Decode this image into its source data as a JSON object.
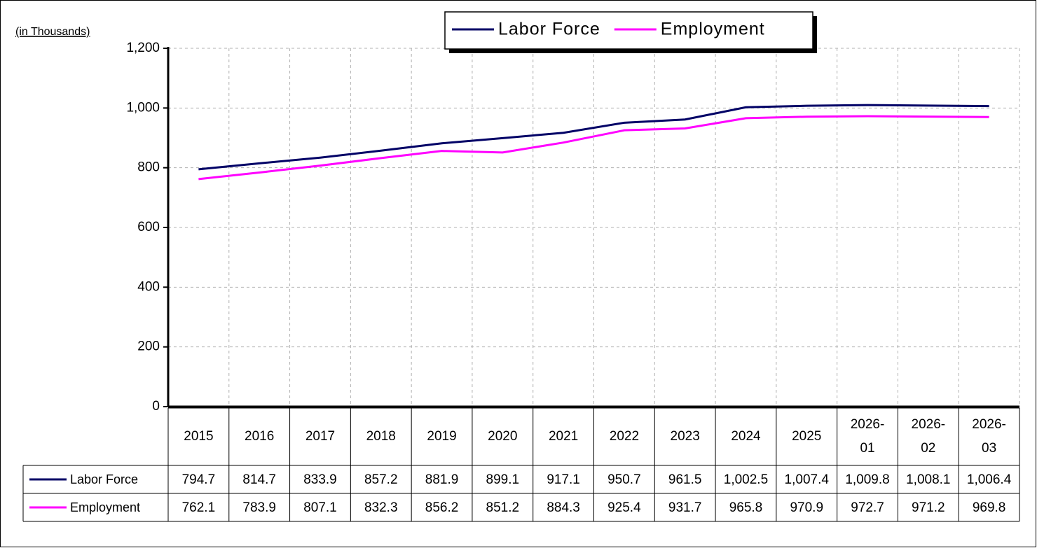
{
  "chart_data": {
    "type": "line",
    "subtitle": "(in Thousands)",
    "categories": [
      "2015",
      "2016",
      "2017",
      "2018",
      "2019",
      "2020",
      "2021",
      "2022",
      "2023",
      "2024",
      "2025",
      "2026-01",
      "2026-02",
      "2026-03"
    ],
    "series": [
      {
        "name": "Labor Force",
        "color": "#000066",
        "values": [
          794.7,
          814.7,
          833.9,
          857.2,
          881.9,
          899.1,
          917.1,
          950.7,
          961.5,
          1002.5,
          1007.4,
          1009.8,
          1008.1,
          1006.4
        ],
        "value_labels": [
          "794.7",
          "814.7",
          "833.9",
          "857.2",
          "881.9",
          "899.1",
          "917.1",
          "950.7",
          "961.5",
          "1,002.5",
          "1,007.4",
          "1,009.8",
          "1,008.1",
          "1,006.4"
        ]
      },
      {
        "name": "Employment",
        "color": "#ff00ff",
        "values": [
          762.1,
          783.9,
          807.1,
          832.3,
          856.2,
          851.2,
          884.3,
          925.4,
          931.7,
          965.8,
          970.9,
          972.7,
          971.2,
          969.8
        ],
        "value_labels": [
          "762.1",
          "783.9",
          "807.1",
          "832.3",
          "856.2",
          "851.2",
          "884.3",
          "925.4",
          "931.7",
          "965.8",
          "970.9",
          "972.7",
          "971.2",
          "969.8"
        ]
      }
    ],
    "ylim": [
      0,
      1200
    ],
    "yticks": [
      0,
      200,
      400,
      600,
      800,
      {
        "value": 1000,
        "label": "1,000"
      },
      {
        "value": 1200,
        "label": "1,200"
      }
    ],
    "grid": true,
    "legend": "top"
  }
}
